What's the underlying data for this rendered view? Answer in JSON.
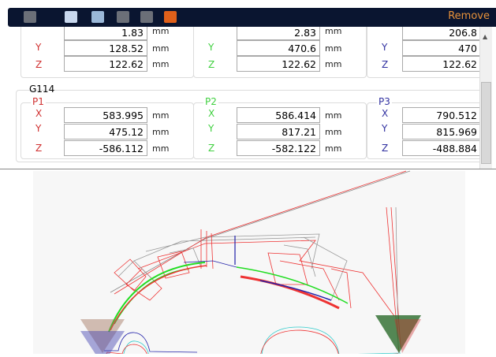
{
  "toolbar": {
    "icons": [
      "save-icon",
      "export-icon",
      "comment-add-icon",
      "layers-icon",
      "measure-icon",
      "line-tool-icon"
    ],
    "remove_label": "Remove",
    "accent": "#e8923a"
  },
  "top_group": {
    "p1": {
      "x": "1.83",
      "y": "128.52",
      "z": "122.62"
    },
    "p2": {
      "x": "2.83",
      "y": "470.6",
      "z": "122.62"
    },
    "p3": {
      "x": "206.8",
      "y": "470",
      "z": "122.62"
    }
  },
  "g114": {
    "title": "G114",
    "p1": {
      "label": "P1",
      "x": "583.995",
      "y": "475.12",
      "z": "-586.112"
    },
    "p2": {
      "label": "P2",
      "x": "586.414",
      "y": "817.21",
      "z": "-582.122"
    },
    "p3": {
      "label": "P3",
      "x": "790.512",
      "y": "815.969",
      "z": "-488.884"
    }
  },
  "axis": {
    "x": "X",
    "y": "Y",
    "z": "Z"
  },
  "unit": "mm",
  "colors": {
    "p1": "#d03030",
    "p2": "#40d040",
    "p3": "#3030a0"
  }
}
